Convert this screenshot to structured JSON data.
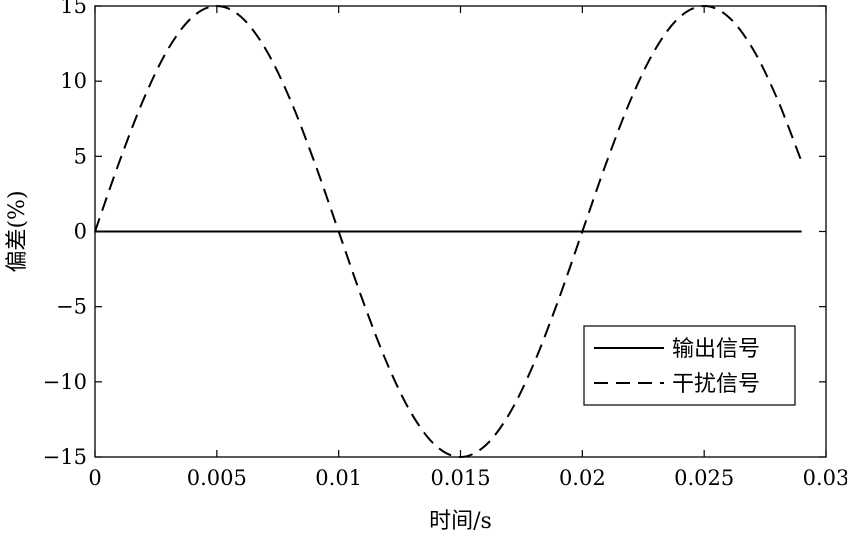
{
  "chart_data": {
    "type": "line",
    "title": "",
    "xlabel": "时间/s",
    "ylabel": "偏差(%)",
    "xlim": [
      0,
      0.03
    ],
    "ylim": [
      -15,
      15
    ],
    "xticks": [
      0,
      0.005,
      0.01,
      0.015,
      0.02,
      0.025,
      0.03
    ],
    "xtick_labels": [
      "0",
      "0.005",
      "0.01",
      "0.015",
      "0.02",
      "0.025",
      "0.03"
    ],
    "yticks": [
      -15,
      -10,
      -5,
      0,
      5,
      10,
      15
    ],
    "ytick_labels": [
      "−15",
      "−10",
      "−5",
      "0",
      "5",
      "10",
      "15"
    ],
    "grid": false,
    "legend_position": "bottom-right",
    "series": [
      {
        "name": "输出信号",
        "style": "solid",
        "color": "#000000",
        "x": [
          0,
          0.029
        ],
        "y": [
          0,
          0
        ]
      },
      {
        "name": "干扰信号",
        "style": "dashed",
        "color": "#000000",
        "x": [
          0,
          0.001,
          0.002,
          0.003,
          0.004,
          0.005,
          0.006,
          0.007,
          0.008,
          0.009,
          0.01,
          0.011,
          0.012,
          0.013,
          0.014,
          0.015,
          0.016,
          0.017,
          0.018,
          0.019,
          0.02,
          0.021,
          0.022,
          0.023,
          0.024,
          0.025,
          0.026,
          0.027,
          0.028,
          0.029
        ],
        "y": [
          0,
          4.64,
          8.82,
          12.14,
          14.27,
          15,
          14.27,
          12.14,
          8.82,
          4.64,
          0,
          -4.64,
          -8.82,
          -12.14,
          -14.27,
          -15,
          -14.27,
          -12.14,
          -8.82,
          -4.64,
          0,
          4.64,
          8.82,
          12.14,
          14.27,
          15,
          14.27,
          12.14,
          8.82,
          4.64
        ]
      }
    ]
  }
}
